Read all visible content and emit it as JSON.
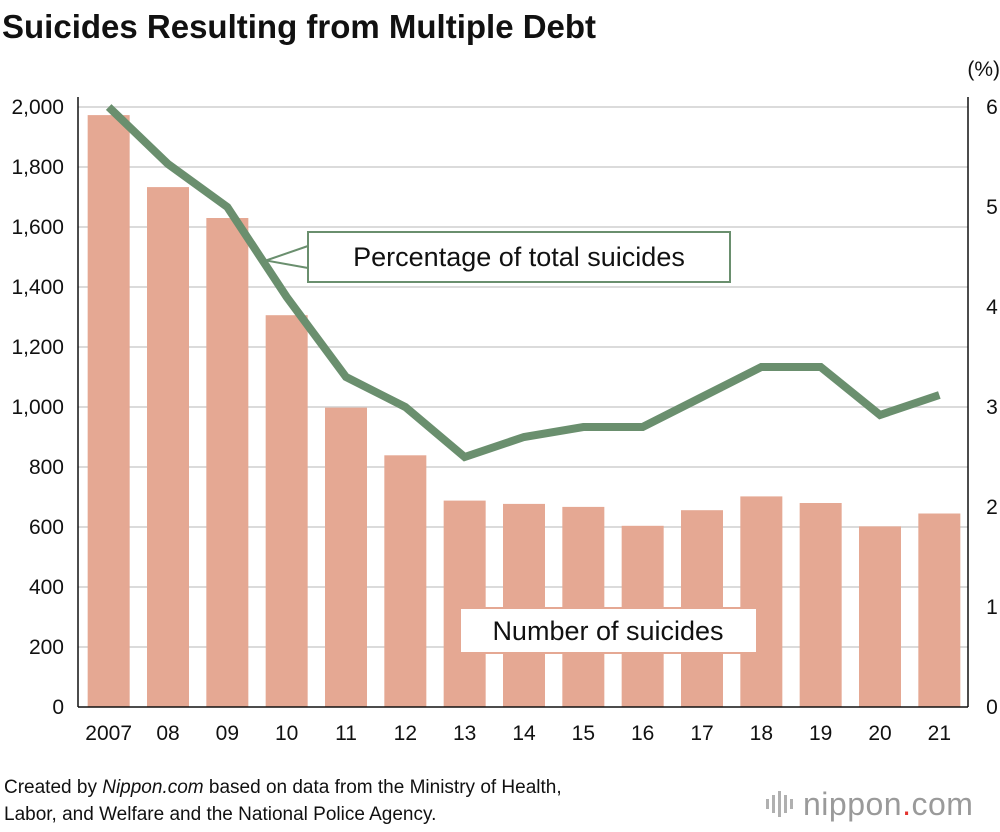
{
  "chart_data": {
    "type": "bar",
    "title": "Suicides Resulting from Multiple Debt",
    "categories": [
      "2007",
      "08",
      "09",
      "10",
      "11",
      "12",
      "13",
      "14",
      "15",
      "16",
      "17",
      "18",
      "19",
      "20",
      "21"
    ],
    "series": [
      {
        "name": "Number of suicides",
        "type": "bar",
        "axis": "left",
        "color": "#e5a893",
        "values": [
          1973,
          1733,
          1630,
          1306,
          998,
          839,
          688,
          677,
          667,
          604,
          656,
          702,
          680,
          602,
          645
        ]
      },
      {
        "name": "Percentage of total suicides",
        "type": "line",
        "axis": "right",
        "color": "#6a8f6e",
        "values": [
          6.0,
          5.43,
          5.0,
          4.1,
          3.3,
          3.0,
          2.5,
          2.7,
          2.8,
          2.8,
          3.1,
          3.4,
          3.4,
          2.92,
          3.12
        ]
      }
    ],
    "y_left": {
      "min": 0,
      "max": 2000,
      "ticks": [
        0,
        200,
        400,
        600,
        800,
        1000,
        1200,
        1400,
        1600,
        1800,
        2000
      ],
      "tick_labels": [
        "0",
        "200",
        "400",
        "600",
        "800",
        "1,000",
        "1,200",
        "1,400",
        "1,600",
        "1,800",
        "2,000"
      ]
    },
    "y_right": {
      "min": 0,
      "max": 6,
      "ticks": [
        0,
        1,
        2,
        3,
        4,
        5,
        6
      ],
      "tick_labels": [
        "0",
        "1",
        "2",
        "3",
        "4",
        "5",
        "6"
      ],
      "unit_label": "(%)"
    },
    "grid": true,
    "annotations": {
      "line_label": "Percentage of total suicides",
      "bar_label": "Number of suicides"
    }
  },
  "colors": {
    "grid": "#cfcfcf",
    "axis": "#111111",
    "callout_line_border": "#6a8f6e",
    "callout_bar_border": "#e5a893"
  },
  "source": {
    "prefix": "Created by ",
    "brand": "Nippon.com",
    "rest_line1": " based on data from the Ministry of Health,",
    "line2": "Labor, and Welfare and the National Police Agency."
  },
  "logo": {
    "name": "nippon",
    "dot": ".",
    "domain": "com",
    "icon": "soundwave-icon"
  }
}
